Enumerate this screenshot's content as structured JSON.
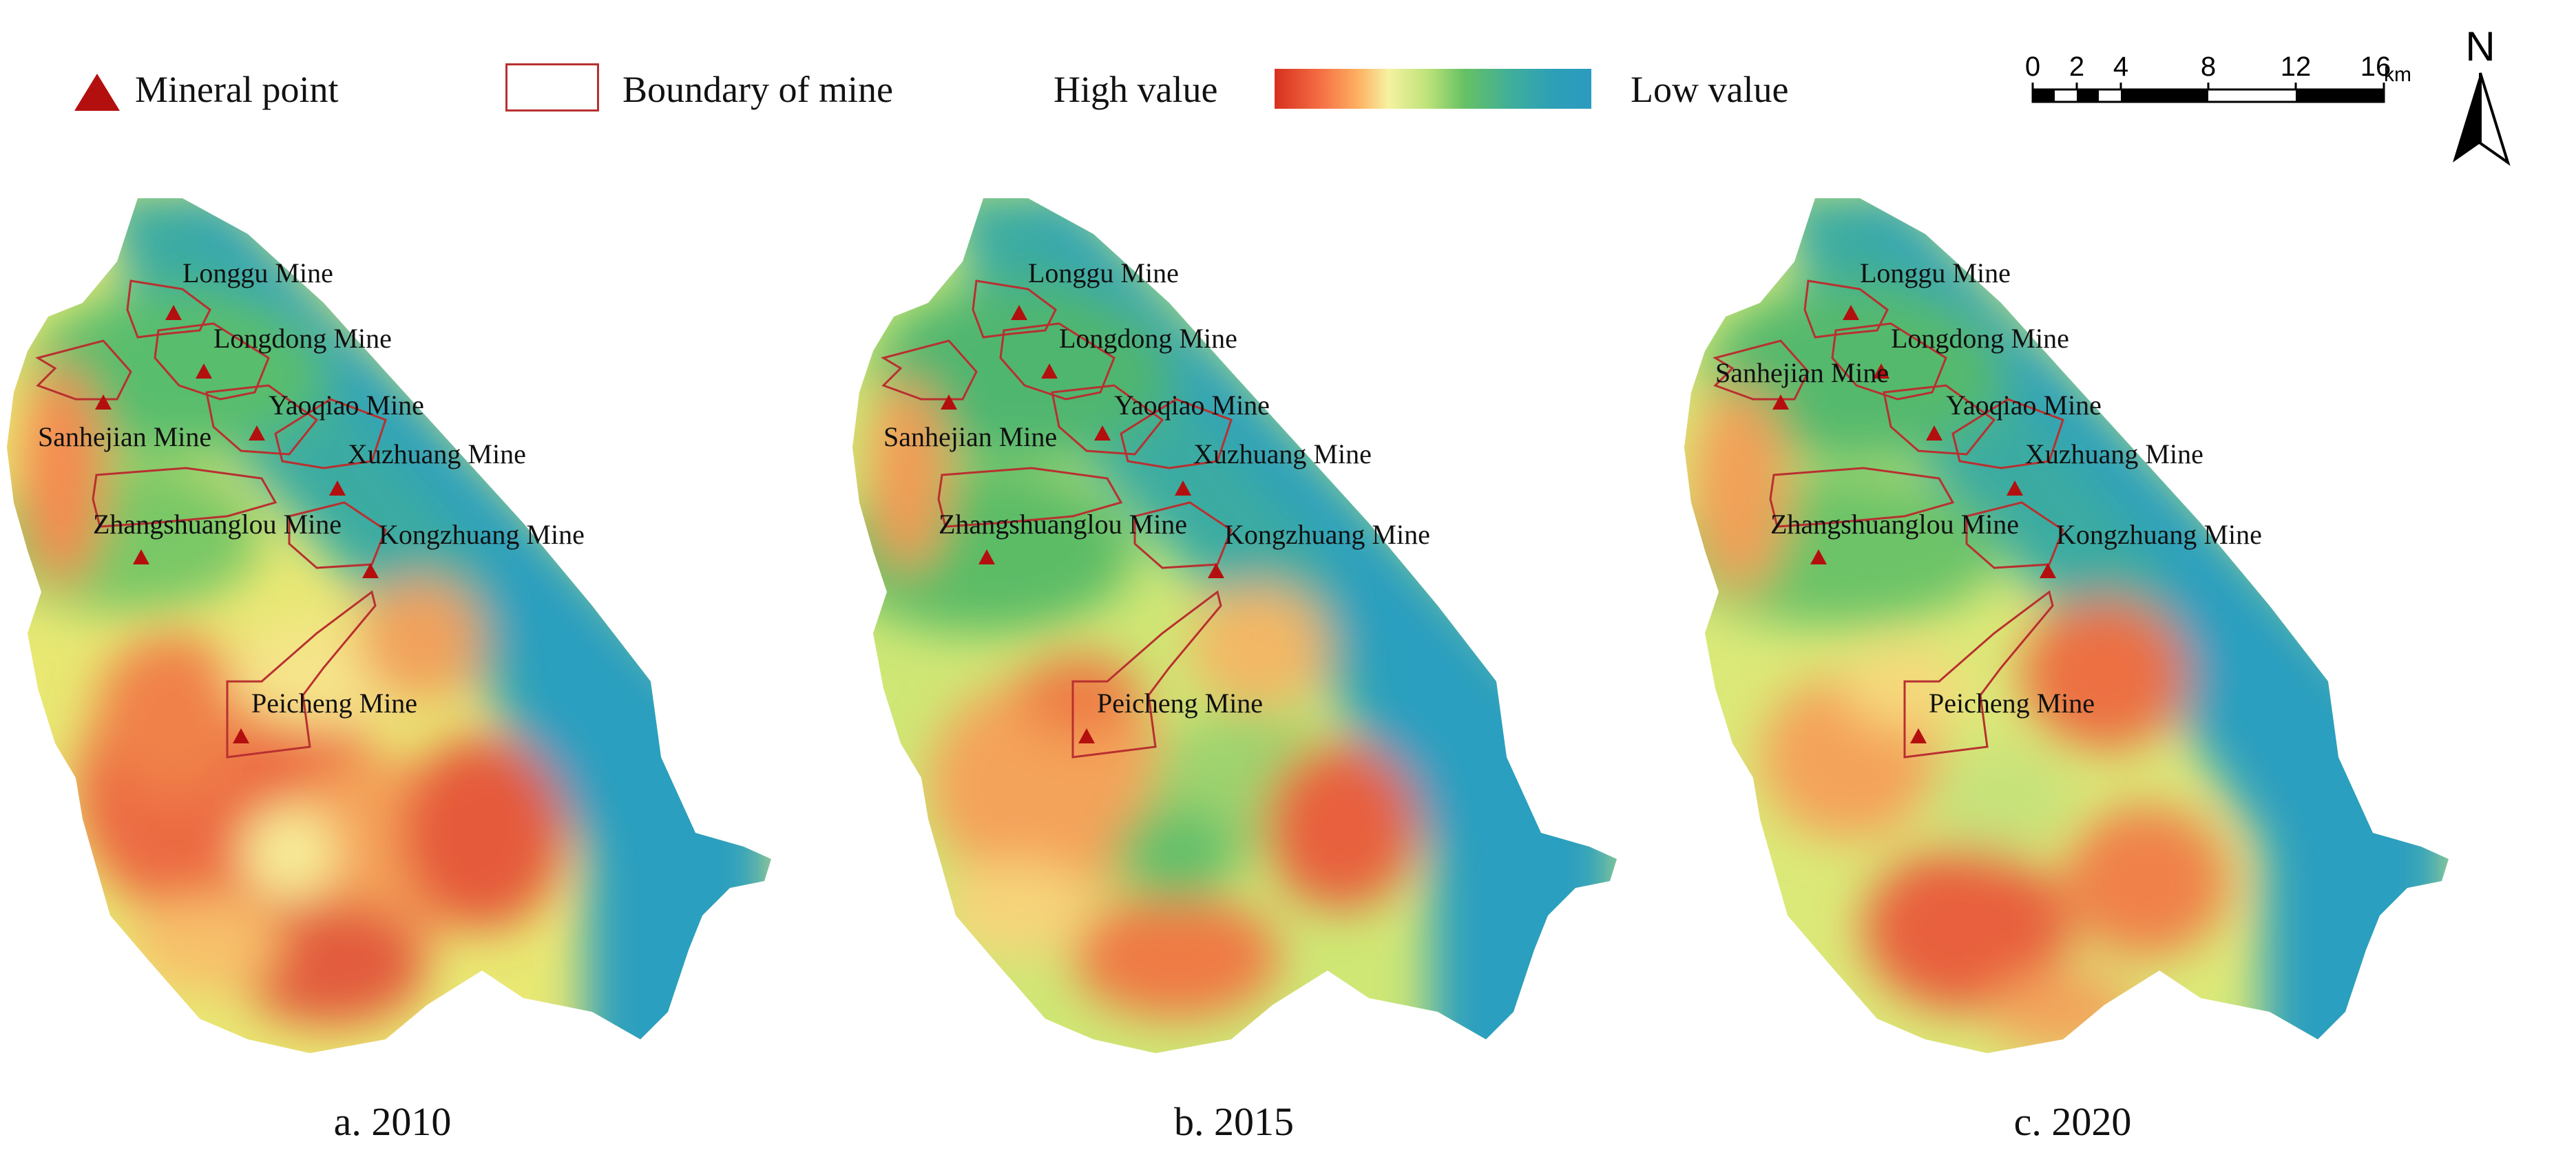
{
  "legend": {
    "mineral_point": "Mineral point",
    "boundary": "Boundary of mine",
    "high": "High value",
    "low": "Low value",
    "ramp_colors": [
      "#d7301f",
      "#f46d43",
      "#fdae61",
      "#f6f2a0",
      "#bfe37a",
      "#66c164",
      "#3fae9b",
      "#2b9bc0"
    ],
    "marker_color": "#b40f0f",
    "boundary_color": "#b83030"
  },
  "scale": {
    "ticks": [
      "0",
      "2",
      "4",
      "8",
      "12",
      "16"
    ],
    "unit": "km"
  },
  "north": "N",
  "panels": [
    {
      "label": "a. 2010",
      "variant": "2010"
    },
    {
      "label": "b. 2015",
      "variant": "2015"
    },
    {
      "label": "c. 2020",
      "variant": "2020"
    }
  ],
  "mines": {
    "longgu": "Longgu Mine",
    "longdong": "Longdong Mine",
    "yaoqiao": "Yaoqiao Mine",
    "sanhejian": "Sanhejian Mine",
    "xuzhuang": "Xuzhuang Mine",
    "zhangshuanglou": "Zhangshuanglou Mine",
    "kongzhuang": "Kongzhuang Mine",
    "peicheng": "Peicheng Mine"
  }
}
